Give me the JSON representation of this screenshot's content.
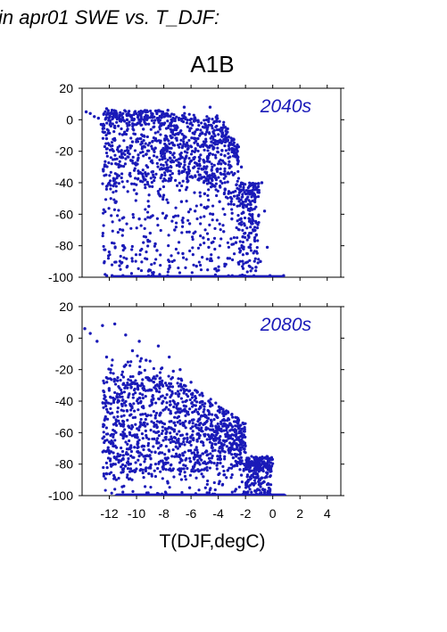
{
  "figure": {
    "header": "in apr01 SWE vs. T_DJF:",
    "title": "A1B",
    "xlabel": "T(DJF,degC)"
  },
  "colors": {
    "points": "#1a1ab8",
    "axes": "#000000",
    "background": "#ffffff"
  },
  "chart_data": [
    {
      "type": "scatter",
      "panel": "top",
      "annotation": "2040s",
      "xlim": [
        -14,
        5
      ],
      "ylim": [
        -100,
        20
      ],
      "xticks": [
        -12,
        -10,
        -8,
        -6,
        -4,
        -2,
        0,
        2,
        4
      ],
      "yticks": [
        20,
        0,
        -20,
        -40,
        -60,
        -80,
        -100
      ],
      "xtick_labels_shown": false,
      "points": [
        [
          -13.7,
          5
        ],
        [
          -13.4,
          4
        ],
        [
          -13.1,
          2
        ],
        [
          -12.8,
          1
        ],
        [
          -12.6,
          -3
        ],
        [
          -12.4,
          -8
        ],
        [
          -12.2,
          -12
        ],
        [
          -12.0,
          -16
        ],
        [
          -12.2,
          7
        ],
        [
          -11.8,
          6
        ],
        [
          -11.6,
          -4
        ],
        [
          -11.4,
          -19
        ],
        [
          -11.3,
          -30
        ],
        [
          -11.7,
          -42
        ],
        [
          -11.5,
          -52
        ],
        [
          -11.1,
          -24
        ],
        [
          -10.9,
          -9
        ],
        [
          -10.7,
          0
        ],
        [
          -10.5,
          3
        ],
        [
          -10.3,
          -14
        ],
        [
          -10.1,
          -28
        ],
        [
          -10.0,
          -47
        ],
        [
          -9.8,
          -63
        ],
        [
          -9.7,
          -39
        ],
        [
          -9.5,
          -6
        ],
        [
          -9.3,
          -22
        ],
        [
          -9.1,
          -55
        ],
        [
          -9.0,
          -72
        ],
        [
          -8.8,
          -33
        ],
        [
          -8.6,
          -12
        ],
        [
          -8.5,
          -83
        ],
        [
          -8.3,
          -48
        ],
        [
          -8.1,
          -25
        ],
        [
          -8.0,
          -3
        ],
        [
          -7.8,
          -61
        ],
        [
          -7.6,
          -90
        ],
        [
          -7.5,
          -38
        ],
        [
          -7.3,
          -16
        ],
        [
          -7.2,
          -70
        ],
        [
          -7.0,
          -5
        ],
        [
          -6.9,
          -29
        ],
        [
          -6.7,
          -52
        ],
        [
          -6.6,
          -85
        ],
        [
          -6.4,
          -11
        ],
        [
          -6.3,
          -43
        ],
        [
          -6.1,
          -66
        ],
        [
          -6.0,
          -2
        ],
        [
          -5.9,
          -20
        ],
        [
          -5.7,
          -58
        ],
        [
          -5.6,
          -93
        ],
        [
          -5.4,
          -35
        ],
        [
          -5.3,
          -9
        ],
        [
          -5.1,
          -75
        ],
        [
          -5.0,
          -47
        ],
        [
          -4.8,
          -24
        ],
        [
          -4.7,
          -81
        ],
        [
          -4.5,
          -14
        ],
        [
          -4.4,
          -60
        ],
        [
          -4.2,
          -37
        ],
        [
          -4.1,
          -96
        ],
        [
          -3.9,
          -52
        ],
        [
          -3.8,
          -28
        ],
        [
          -3.6,
          -71
        ],
        [
          -3.5,
          -44
        ],
        [
          -3.3,
          -88
        ],
        [
          -3.2,
          -19
        ],
        [
          -3.0,
          -63
        ],
        [
          -2.9,
          -35
        ],
        [
          -2.7,
          -78
        ],
        [
          -2.5,
          -50
        ],
        [
          -2.3,
          -30
        ],
        [
          -2.1,
          -66
        ],
        [
          -1.9,
          -85
        ],
        [
          -1.7,
          -42
        ],
        [
          -1.5,
          -57
        ],
        [
          -1.2,
          -73
        ],
        [
          -0.9,
          -90
        ],
        [
          -0.6,
          -58
        ],
        [
          -0.4,
          -81
        ],
        [
          -0.2,
          -99
        ],
        [
          -0.8,
          -40
        ],
        [
          -6.5,
          8
        ],
        [
          -4.6,
          8
        ],
        [
          -7.7,
          6
        ],
        [
          -8.9,
          4
        ],
        [
          -5.5,
          -12
        ],
        [
          -6.2,
          -18
        ],
        [
          -5.8,
          -25
        ],
        [
          -6.8,
          -22
        ],
        [
          -4.9,
          -31
        ]
      ],
      "floor_points": [
        [
          -11.8,
          -99
        ],
        [
          -11.0,
          -99
        ],
        [
          -10.2,
          -100
        ],
        [
          -9.4,
          -100
        ],
        [
          -8.6,
          -100
        ],
        [
          -7.8,
          -100
        ],
        [
          -7.0,
          -100
        ],
        [
          -6.2,
          -100
        ],
        [
          -5.4,
          -100
        ],
        [
          -4.6,
          -100
        ],
        [
          -3.8,
          -100
        ],
        [
          -3.0,
          -100
        ],
        [
          -2.2,
          -100
        ],
        [
          -1.4,
          -100
        ],
        [
          -0.6,
          -100
        ],
        [
          0.2,
          -100
        ],
        [
          0.8,
          -99
        ]
      ]
    },
    {
      "type": "scatter",
      "panel": "bottom",
      "annotation": "2080s",
      "xlim": [
        -14,
        5
      ],
      "ylim": [
        -100,
        20
      ],
      "xticks": [
        -12,
        -10,
        -8,
        -6,
        -4,
        -2,
        0,
        2,
        4
      ],
      "yticks": [
        20,
        0,
        -20,
        -40,
        -60,
        -80,
        -100
      ],
      "xtick_labels_shown": true,
      "points": [
        [
          -13.8,
          6
        ],
        [
          -13.4,
          3
        ],
        [
          -12.9,
          -2
        ],
        [
          -12.5,
          8
        ],
        [
          -12.2,
          -12
        ],
        [
          -11.9,
          -20
        ],
        [
          -11.6,
          9
        ],
        [
          -11.4,
          -27
        ],
        [
          -11.1,
          -35
        ],
        [
          -10.9,
          -18
        ],
        [
          -10.7,
          -46
        ],
        [
          -10.5,
          -60
        ],
        [
          -10.3,
          -8
        ],
        [
          -10.1,
          -29
        ],
        [
          -9.9,
          -72
        ],
        [
          -9.7,
          -41
        ],
        [
          -9.5,
          -55
        ],
        [
          -9.3,
          -14
        ],
        [
          -9.1,
          -86
        ],
        [
          -8.9,
          -33
        ],
        [
          -8.7,
          -64
        ],
        [
          -8.5,
          -24
        ],
        [
          -8.3,
          -49
        ],
        [
          -8.1,
          -78
        ],
        [
          -7.9,
          -38
        ],
        [
          -7.7,
          -92
        ],
        [
          -7.5,
          -57
        ],
        [
          -7.3,
          -21
        ],
        [
          -7.1,
          -69
        ],
        [
          -6.9,
          -45
        ],
        [
          -6.7,
          -83
        ],
        [
          -6.5,
          -30
        ],
        [
          -6.3,
          -61
        ],
        [
          -6.1,
          -95
        ],
        [
          -5.9,
          -52
        ],
        [
          -5.7,
          -37
        ],
        [
          -5.5,
          -75
        ],
        [
          -5.3,
          -44
        ],
        [
          -5.1,
          -88
        ],
        [
          -4.9,
          -58
        ],
        [
          -4.7,
          -40
        ],
        [
          -4.5,
          -79
        ],
        [
          -4.3,
          -65
        ],
        [
          -4.1,
          -50
        ],
        [
          -3.9,
          -91
        ],
        [
          -3.7,
          -70
        ],
        [
          -3.5,
          -55
        ],
        [
          -3.3,
          -84
        ],
        [
          -3.1,
          -62
        ],
        [
          -2.9,
          -76
        ],
        [
          -2.7,
          -96
        ],
        [
          -2.5,
          -68
        ],
        [
          -2.3,
          -87
        ],
        [
          -2.1,
          -80
        ],
        [
          -1.9,
          -94
        ],
        [
          -1.6,
          -89
        ],
        [
          -1.3,
          -97
        ],
        [
          -1.0,
          -93
        ],
        [
          -0.6,
          -98
        ],
        [
          -0.2,
          -99
        ],
        [
          -8.4,
          -5
        ],
        [
          -7.6,
          -12
        ],
        [
          -6.8,
          -20
        ],
        [
          -6.0,
          -28
        ],
        [
          -5.2,
          -35
        ],
        [
          -9.8,
          -2
        ],
        [
          -10.8,
          2
        ],
        [
          -11.3,
          -40
        ],
        [
          -12.0,
          -66
        ],
        [
          -11.7,
          -80
        ]
      ],
      "floor_points": [
        [
          -11.5,
          -100
        ],
        [
          -10.7,
          -100
        ],
        [
          -9.9,
          -100
        ],
        [
          -9.1,
          -100
        ],
        [
          -8.3,
          -100
        ],
        [
          -7.5,
          -100
        ],
        [
          -6.7,
          -100
        ],
        [
          -5.9,
          -100
        ],
        [
          -5.1,
          -100
        ],
        [
          -4.3,
          -100
        ],
        [
          -3.5,
          -100
        ],
        [
          -2.7,
          -100
        ],
        [
          -1.9,
          -100
        ],
        [
          -1.1,
          -100
        ],
        [
          -0.3,
          -100
        ],
        [
          0.4,
          -100
        ],
        [
          0.9,
          -100
        ]
      ]
    }
  ]
}
